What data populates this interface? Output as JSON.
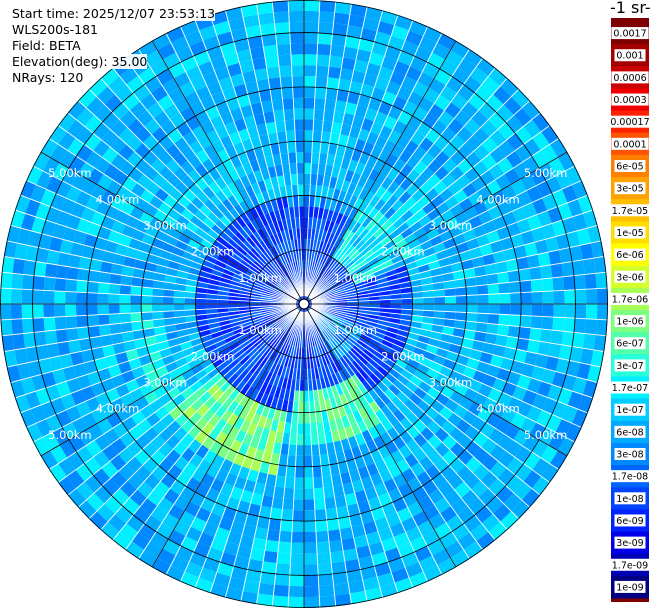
{
  "header": {
    "start_time": "Start time: 2025/12/07 23:53:13",
    "instrument": "WLS200s-181",
    "field": "Field: BETA",
    "elevation": "Elevation(deg): 35.00",
    "nrays": "NRays: 120"
  },
  "unit_label": "-1 sr-",
  "chart_data": {
    "type": "heatmap",
    "projection": "polar-ppi",
    "field": "BETA",
    "elevation_deg": 35.0,
    "nrays": 120,
    "range_rings_km": [
      1,
      2,
      3,
      4,
      5
    ],
    "range_labels": [
      "1.00km",
      "2.00km",
      "3.00km",
      "4.00km",
      "5.00km"
    ],
    "max_range_km": 5.6,
    "colorbar": {
      "ticks": [
        "0.0017",
        "0.001",
        "0.0006",
        "0.0003",
        "0.00017",
        "0.0001",
        "6e-05",
        "3e-05",
        "1.7e-05",
        "1e-05",
        "6e-06",
        "3e-06",
        "1.7e-06",
        "1e-06",
        "6e-07",
        "3e-07",
        "1.7e-07",
        "1e-07",
        "6e-08",
        "3e-08",
        "1.7e-08",
        "1e-08",
        "6e-09",
        "3e-09",
        "1.7e-09",
        "1e-09"
      ],
      "colors": [
        "#7f0000",
        "#a50000",
        "#cc0000",
        "#ee0000",
        "#ff2200",
        "#ff5500",
        "#ff7f00",
        "#ffa200",
        "#ffbf00",
        "#ffdd00",
        "#ffff00",
        "#d4ff2a",
        "#a8ff56",
        "#7dff82",
        "#54ffaa",
        "#26ffd9",
        "#00f0ff",
        "#00ccff",
        "#00aaff",
        "#0088ff",
        "#0066ff",
        "#0044ff",
        "#0022ff",
        "#0000e8",
        "#0000b4",
        "#000080"
      ]
    },
    "enhanced_regions": [
      {
        "azimuth_deg": 320,
        "range_km": [
          2.4,
          3.1
        ],
        "level": "1.7e-07"
      },
      {
        "azimuth_deg": 250,
        "range_km": [
          2.6,
          3.4
        ],
        "level": "3e-07"
      },
      {
        "azimuth_deg": 210,
        "range_km": [
          2.0,
          3.2
        ],
        "level": "1.7e-06"
      },
      {
        "azimuth_deg": 165,
        "range_km": [
          1.6,
          2.6
        ],
        "level": "1e-06"
      },
      {
        "azimuth_deg": 50,
        "range_km": [
          1.0,
          2.2
        ],
        "level": "3e-07"
      },
      {
        "azimuth_deg": 130,
        "range_km": [
          0.3,
          1.2
        ],
        "level": "1e-07"
      },
      {
        "azimuth_deg": 10,
        "range_km": [
          1.8,
          2.2
        ],
        "level": "1e-07"
      }
    ]
  }
}
